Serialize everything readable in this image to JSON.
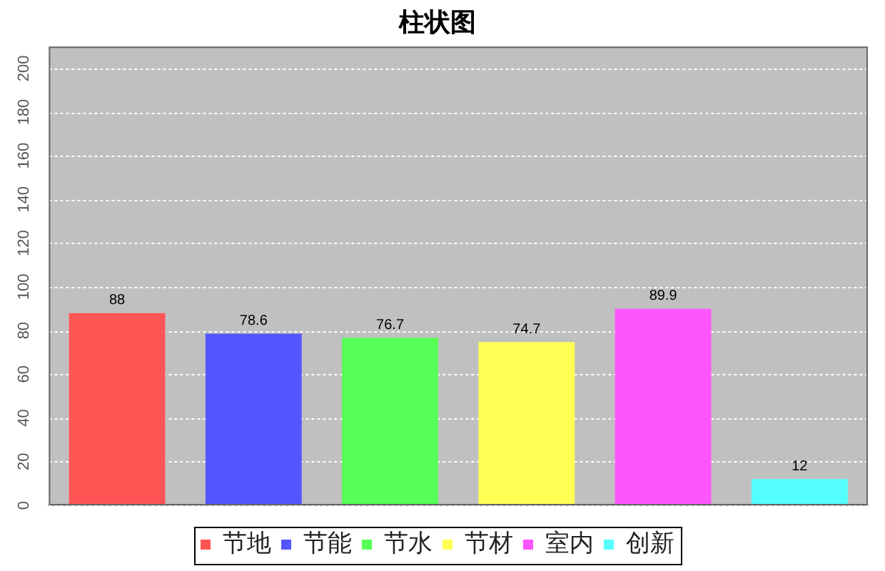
{
  "chart_data": {
    "type": "bar",
    "title": "柱状图",
    "categories": [
      null,
      null,
      null,
      null,
      null,
      null
    ],
    "series": [
      {
        "name": "节地",
        "color": "#ff5555",
        "values": [
          88,
          null,
          null,
          null,
          null,
          null
        ]
      },
      {
        "name": "节能",
        "color": "#5555ff",
        "values": [
          null,
          78.6,
          null,
          null,
          null,
          null
        ]
      },
      {
        "name": "节水",
        "color": "#55ff55",
        "values": [
          null,
          null,
          76.7,
          null,
          null,
          null
        ]
      },
      {
        "name": "节材",
        "color": "#ffff55",
        "values": [
          null,
          null,
          null,
          74.7,
          null,
          null
        ]
      },
      {
        "name": "室内",
        "color": "#ff55ff",
        "values": [
          null,
          null,
          null,
          null,
          89.9,
          null
        ]
      },
      {
        "name": "创新",
        "color": "#55ffff",
        "values": [
          null,
          null,
          null,
          null,
          null,
          12
        ]
      }
    ],
    "ylim": [
      0,
      210
    ],
    "yticks": [
      0,
      20,
      40,
      60,
      80,
      100,
      120,
      140,
      160,
      180,
      200
    ],
    "grid": "y",
    "legend": "bottom",
    "data_labels": true
  }
}
